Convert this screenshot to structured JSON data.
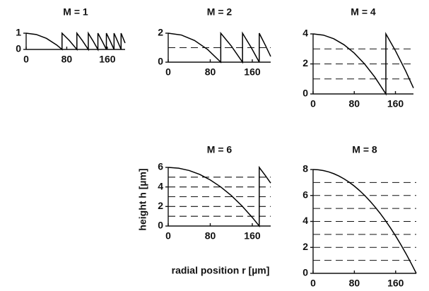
{
  "chart_data": [
    {
      "type": "line",
      "title": "M = 1",
      "color": "#000",
      "x": [
        0,
        20,
        40,
        60,
        70.71,
        70.71,
        85,
        100,
        100,
        111,
        122.47,
        122.47,
        132,
        141.42,
        141.42,
        150,
        158.11,
        158.11,
        166,
        173.21,
        173.21,
        180,
        187.08,
        187.08,
        195
      ],
      "values": [
        1,
        0.92,
        0.68,
        0.28,
        0,
        1,
        0.555,
        0,
        1,
        0.536,
        0,
        1,
        0.515,
        0,
        1,
        0.5,
        0,
        1,
        0.489,
        0,
        1,
        0.52,
        0,
        1,
        0.395
      ],
      "xlim": [
        0,
        195
      ],
      "ylim": [
        0,
        1
      ],
      "xticks": [
        0,
        80,
        160
      ],
      "yticks": [
        0,
        1
      ],
      "levels": []
    },
    {
      "type": "line",
      "title": "M = 2",
      "color": "#000",
      "x": [
        0,
        25,
        50,
        75,
        100,
        100,
        120,
        141.42,
        141.42,
        158,
        173.21,
        173.21,
        185,
        195
      ],
      "values": [
        2,
        1.875,
        1.5,
        0.875,
        0,
        2,
        1.12,
        0,
        2,
        1.007,
        0,
        2,
        1.155,
        0.395
      ],
      "xlim": [
        0,
        195
      ],
      "ylim": [
        0,
        2
      ],
      "xticks": [
        0,
        80,
        160
      ],
      "yticks": [
        0,
        2
      ],
      "levels": [
        1
      ]
    },
    {
      "type": "line",
      "title": "M = 4",
      "color": "#000",
      "x": [
        0,
        20,
        40,
        60,
        80,
        100,
        120,
        141.42,
        141.42,
        160,
        180,
        195
      ],
      "values": [
        4,
        3.92,
        3.68,
        3.28,
        2.72,
        2,
        1.12,
        0,
        4,
        2.88,
        1.52,
        0.395
      ],
      "xlim": [
        0,
        195
      ],
      "ylim": [
        0,
        4
      ],
      "xticks": [
        0,
        80,
        160
      ],
      "yticks": [
        0,
        2,
        4
      ],
      "levels": [
        1,
        2,
        3
      ]
    },
    {
      "type": "line",
      "title": "M = 6",
      "color": "#000",
      "xlabel": "radial position r [µm]",
      "ylabel": "height h [µm]",
      "x": [
        0,
        20,
        40,
        60,
        80,
        100,
        120,
        140,
        160,
        173.21,
        173.21,
        185,
        195
      ],
      "values": [
        6,
        5.92,
        5.68,
        5.28,
        4.72,
        4,
        3.12,
        2.08,
        0.88,
        0,
        6,
        5.155,
        4.395
      ],
      "xlim": [
        0,
        195
      ],
      "ylim": [
        0,
        6
      ],
      "xticks": [
        0,
        80,
        160
      ],
      "yticks": [
        0,
        2,
        4,
        6
      ],
      "levels": [
        1,
        2,
        3,
        4,
        5
      ]
    },
    {
      "type": "line",
      "title": "M = 8",
      "color": "#000",
      "x": [
        0,
        10,
        20,
        30,
        40,
        50,
        60,
        70,
        80,
        90,
        100,
        110,
        120,
        130,
        140,
        150,
        160,
        170,
        180,
        190,
        200
      ],
      "values": [
        8,
        7.98,
        7.92,
        7.82,
        7.68,
        7.5,
        7.28,
        7.02,
        6.72,
        6.38,
        6,
        5.58,
        5.12,
        4.62,
        4.08,
        3.5,
        2.88,
        2.22,
        1.52,
        0.78,
        0
      ],
      "xlim": [
        0,
        200
      ],
      "ylim": [
        0,
        8
      ],
      "xticks": [
        0,
        80,
        160
      ],
      "yticks": [
        0,
        2,
        4,
        6,
        8
      ],
      "levels": [
        1,
        2,
        3,
        4,
        5,
        6,
        7
      ]
    }
  ]
}
